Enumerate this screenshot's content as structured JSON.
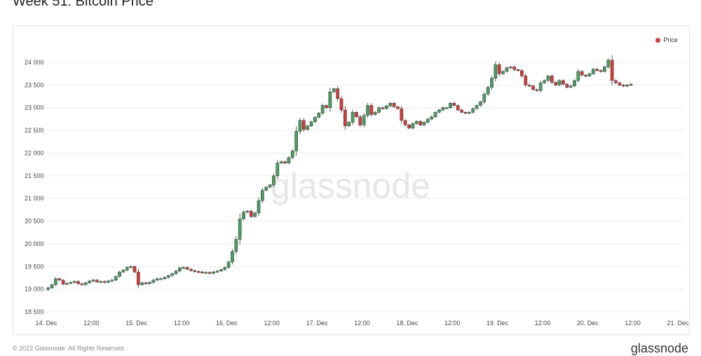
{
  "page": {
    "title": "Week 51: Bitcoin Price",
    "footer_left": "© 2022 Glassnode. All Rights Reserved.",
    "footer_brand": "glassnode",
    "watermark": "glassnode"
  },
  "colors": {
    "up": "#4a9e62",
    "down": "#d63b3b",
    "grid": "#ececec",
    "watermark": "#e6e6e6"
  },
  "chart_data": {
    "type": "candlestick",
    "title": "",
    "xlabel": "",
    "ylabel": "",
    "ylim": [
      18500,
      24000
    ],
    "yticks": [
      18500,
      19000,
      19500,
      20000,
      20500,
      21000,
      21500,
      22000,
      22500,
      23000,
      23500,
      24000
    ],
    "ytick_labels": [
      "18 500",
      "19 000",
      "19 500",
      "20 000",
      "20 500",
      "21 000",
      "21 500",
      "22 000",
      "22 500",
      "23 000",
      "23 500",
      "24 000"
    ],
    "xlim_hours": [
      0,
      168
    ],
    "xticks": [
      {
        "hour": 0,
        "label": "14. Dec"
      },
      {
        "hour": 12,
        "label": "12:00"
      },
      {
        "hour": 24,
        "label": "15. Dec"
      },
      {
        "hour": 36,
        "label": "12:00"
      },
      {
        "hour": 48,
        "label": "16. Dec"
      },
      {
        "hour": 60,
        "label": "12:00"
      },
      {
        "hour": 72,
        "label": "17. Dec"
      },
      {
        "hour": 84,
        "label": "12:00"
      },
      {
        "hour": 96,
        "label": "18. Dec"
      },
      {
        "hour": 108,
        "label": "12:00"
      },
      {
        "hour": 120,
        "label": "19. Dec"
      },
      {
        "hour": 132,
        "label": "12:00"
      },
      {
        "hour": 144,
        "label": "20. Dec"
      },
      {
        "hour": 156,
        "label": "12:00"
      },
      {
        "hour": 168,
        "label": "21. Dec"
      }
    ],
    "legend": {
      "position": "top-right",
      "entries": [
        {
          "name": "Price",
          "color": "#d63b3b"
        }
      ]
    },
    "grid": true,
    "series": [
      {
        "name": "Price",
        "close": [
          19030,
          19100,
          19230,
          19200,
          19110,
          19130,
          19150,
          19170,
          19120,
          19100,
          19140,
          19180,
          19200,
          19160,
          19170,
          19150,
          19180,
          19200,
          19280,
          19380,
          19420,
          19480,
          19500,
          19380,
          19100,
          19140,
          19120,
          19150,
          19200,
          19230,
          19230,
          19260,
          19300,
          19340,
          19400,
          19470,
          19480,
          19440,
          19410,
          19390,
          19380,
          19370,
          19370,
          19350,
          19380,
          19400,
          19430,
          19480,
          19600,
          19830,
          20100,
          20550,
          20700,
          20720,
          20600,
          20680,
          20950,
          21180,
          21250,
          21300,
          21500,
          21780,
          21810,
          21780,
          21900,
          22050,
          22480,
          22720,
          22520,
          22600,
          22690,
          22790,
          22880,
          23050,
          23000,
          23350,
          23420,
          23200,
          22950,
          22600,
          22680,
          22900,
          22800,
          22620,
          22830,
          23050,
          22850,
          22900,
          23000,
          22980,
          23040,
          23100,
          23020,
          22980,
          22720,
          22620,
          22550,
          22650,
          22700,
          22620,
          22680,
          22750,
          22800,
          22900,
          22950,
          23000,
          23000,
          23100,
          23050,
          22950,
          22900,
          22880,
          22900,
          22980,
          23050,
          23130,
          23300,
          23450,
          23650,
          23950,
          23750,
          23800,
          23880,
          23900,
          23840,
          23820,
          23700,
          23500,
          23480,
          23400,
          23380,
          23550,
          23600,
          23700,
          23560,
          23500,
          23600,
          23520,
          23450,
          23480,
          23600,
          23800,
          23720,
          23700,
          23750,
          23850,
          23820,
          23800,
          23900,
          24050,
          23600,
          23550,
          23500,
          23480,
          23500,
          23520
        ]
      }
    ]
  }
}
